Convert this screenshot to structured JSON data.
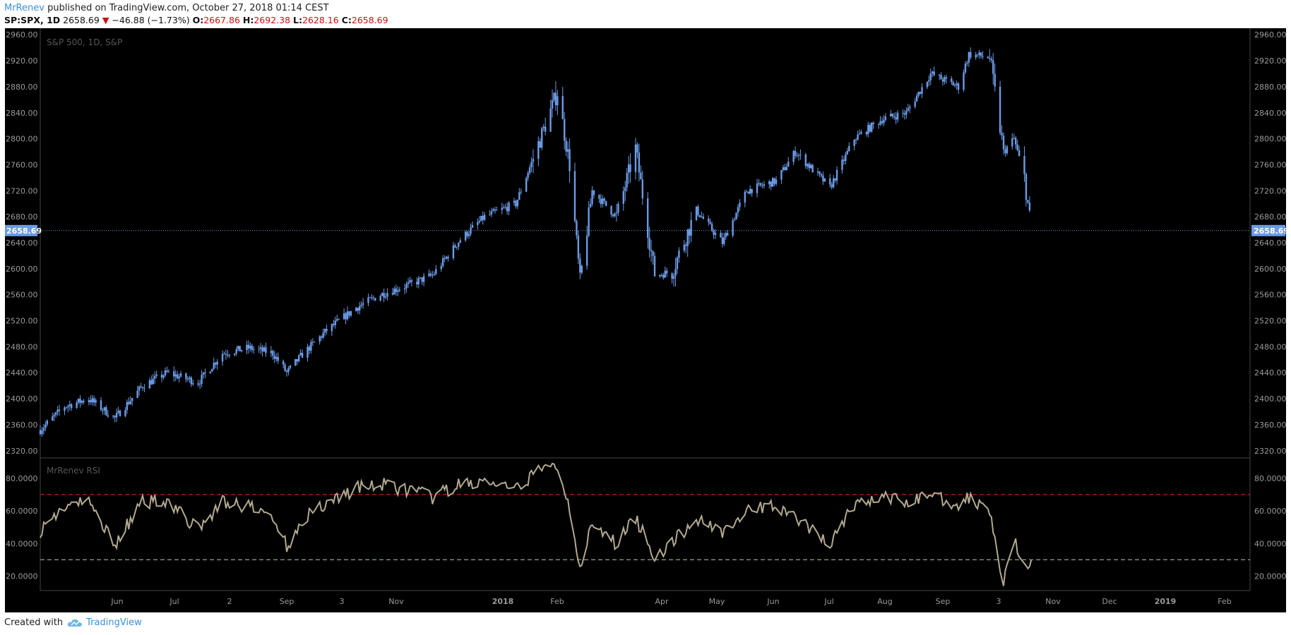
{
  "header": {
    "user": "MrRenev",
    "published_text": "published on TradingView.com, October 27, 2018 01:14 CEST",
    "symbol": "SP:SPX, 1D",
    "last": "2658.69",
    "change": "−46.88 (−1.73%)",
    "o_label": "O:",
    "o_value": "2667.86",
    "h_label": "H:",
    "h_value": "2692.38",
    "l_label": "L:",
    "l_value": "2628.16",
    "c_label": "C:",
    "c_value": "2658.69",
    "change_arrow": "▼"
  },
  "footer": {
    "created_with": "Created with",
    "brand": "TradingView",
    "logo_icon": "tradingview-cloud-icon"
  },
  "colors": {
    "candle": "#6c9be6",
    "rsi_line": "#b3a990",
    "overbought": "#c21f1f",
    "oversold": "#7fae7f",
    "price_line": "#6c9be6",
    "background": "#000000"
  },
  "chart_data": [
    {
      "type": "candlestick",
      "title": "S&P 500, 1D, S&P",
      "ylim": [
        2310,
        2970
      ],
      "y_ticks": [
        "2320.00",
        "2360.00",
        "2400.00",
        "2440.00",
        "2480.00",
        "2520.00",
        "2560.00",
        "2600.00",
        "2640.00",
        "2680.00",
        "2720.00",
        "2760.00",
        "2800.00",
        "2840.00",
        "2880.00",
        "2920.00",
        "2960.00"
      ],
      "last_price_label": "2658.69",
      "last_price": 2658.69,
      "x_ticks": [
        "Jun",
        "Jul",
        "2",
        "Sep",
        "3",
        "Nov",
        "2018",
        "Feb",
        "Apr",
        "May",
        "Jun",
        "Jul",
        "Aug",
        "Sep",
        "3",
        "Nov",
        "Dec",
        "2019",
        "Feb"
      ],
      "x": [
        "2017-04-03",
        "2017-04-17",
        "2017-05-01",
        "2017-05-16",
        "2017-06-01",
        "2017-06-15",
        "2017-07-03",
        "2017-07-17",
        "2017-08-01",
        "2017-08-15",
        "2017-08-23",
        "2017-09-01",
        "2017-09-15",
        "2017-10-02",
        "2017-10-16",
        "2017-11-01",
        "2017-11-15",
        "2017-12-01",
        "2017-12-15",
        "2018-01-02",
        "2018-01-12",
        "2018-01-26",
        "2018-02-02",
        "2018-02-08",
        "2018-02-15",
        "2018-03-01",
        "2018-03-12",
        "2018-03-23",
        "2018-04-02",
        "2018-04-16",
        "2018-05-01",
        "2018-05-15",
        "2018-06-01",
        "2018-06-12",
        "2018-07-02",
        "2018-07-16",
        "2018-08-01",
        "2018-08-15",
        "2018-08-29",
        "2018-09-14",
        "2018-09-20",
        "2018-10-02",
        "2018-10-10",
        "2018-10-16",
        "2018-10-22",
        "2018-10-26"
      ],
      "close": [
        2352,
        2388,
        2400,
        2370,
        2420,
        2440,
        2425,
        2470,
        2478,
        2470,
        2440,
        2468,
        2505,
        2540,
        2560,
        2575,
        2590,
        2645,
        2680,
        2700,
        2770,
        2872,
        2760,
        2580,
        2720,
        2680,
        2785,
        2590,
        2595,
        2690,
        2640,
        2720,
        2735,
        2780,
        2725,
        2800,
        2830,
        2840,
        2900,
        2880,
        2930,
        2925,
        2780,
        2800,
        2740,
        2658.69
      ]
    },
    {
      "type": "line",
      "title": "MrRenev RSI",
      "ylim": [
        12,
        92
      ],
      "y_ticks": [
        "20.0000",
        "40.0000",
        "60.0000",
        "80.0000"
      ],
      "overbought": 70,
      "oversold": 30,
      "x": [
        "2017-04-03",
        "2017-04-17",
        "2017-05-01",
        "2017-05-16",
        "2017-06-01",
        "2017-06-15",
        "2017-07-03",
        "2017-07-17",
        "2017-08-01",
        "2017-08-15",
        "2017-08-23",
        "2017-09-01",
        "2017-09-15",
        "2017-10-02",
        "2017-10-16",
        "2017-11-01",
        "2017-11-15",
        "2017-12-01",
        "2017-12-15",
        "2018-01-02",
        "2018-01-12",
        "2018-01-26",
        "2018-02-02",
        "2018-02-08",
        "2018-02-15",
        "2018-03-01",
        "2018-03-12",
        "2018-03-23",
        "2018-04-02",
        "2018-04-16",
        "2018-05-01",
        "2018-05-15",
        "2018-06-01",
        "2018-06-12",
        "2018-07-02",
        "2018-07-16",
        "2018-08-01",
        "2018-08-15",
        "2018-08-29",
        "2018-09-14",
        "2018-09-20",
        "2018-10-02",
        "2018-10-10",
        "2018-10-16",
        "2018-10-22",
        "2018-10-26"
      ],
      "values": [
        48,
        63,
        65,
        40,
        65,
        67,
        48,
        66,
        62,
        57,
        38,
        55,
        65,
        74,
        76,
        73,
        68,
        76,
        78,
        72,
        83,
        88,
        62,
        27,
        50,
        40,
        56,
        32,
        40,
        55,
        48,
        59,
        64,
        55,
        40,
        64,
        68,
        65,
        71,
        63,
        68,
        62,
        15,
        42,
        24,
        30
      ]
    }
  ]
}
